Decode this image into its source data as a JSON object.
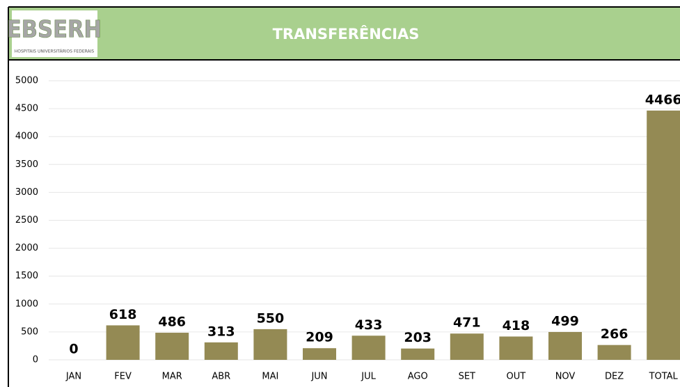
{
  "logo": {
    "name": "EBSERH",
    "tagline": "HOSPITAIS UNIVERSITÁRIOS FEDERAIS"
  },
  "chart_data": {
    "type": "bar",
    "title": "TRANSFERÊNCIAS",
    "categories": [
      "JAN",
      "FEV",
      "MAR",
      "ABR",
      "MAI",
      "JUN",
      "JUL",
      "AGO",
      "SET",
      "OUT",
      "NOV",
      "DEZ",
      "TOTAL"
    ],
    "values": [
      0,
      618,
      486,
      313,
      550,
      209,
      433,
      203,
      471,
      418,
      499,
      266,
      4466
    ],
    "color": "#948a54",
    "ylim": [
      0,
      5000
    ],
    "yticks": [
      0,
      500,
      1000,
      1500,
      2000,
      2500,
      3000,
      3500,
      4000,
      4500,
      5000
    ],
    "grid": true
  }
}
